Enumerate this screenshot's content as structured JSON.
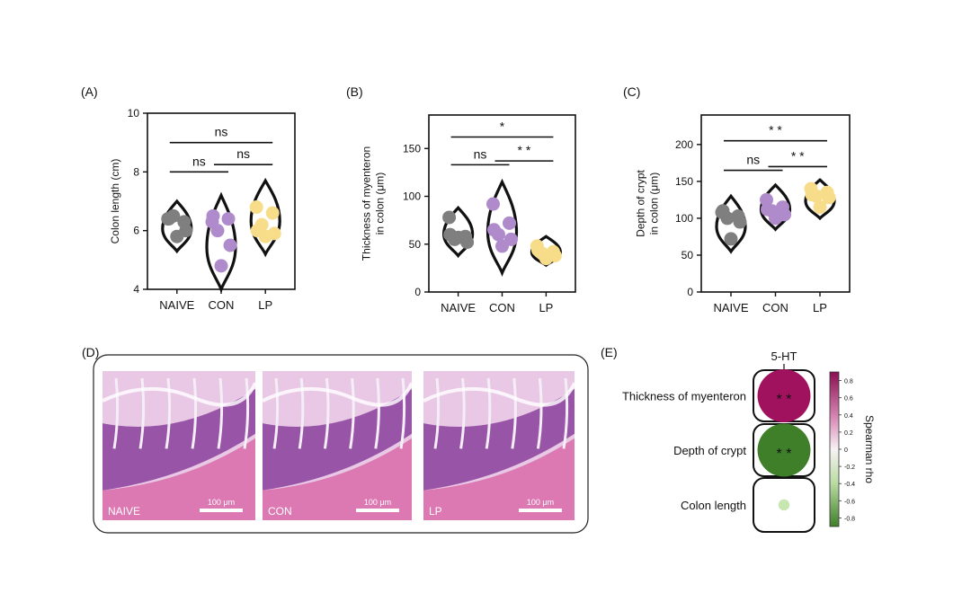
{
  "colors": {
    "naive": "#7f7f7f",
    "con": "#b08bcc",
    "lp": "#f7dc8a",
    "outline": "#111111",
    "tissue_bg": "#e9c8e6",
    "tissue_dark": "#8a3f9a",
    "tissue_pink": "#d96aa8",
    "rho_pos": "#a0125e",
    "rho_neg": "#3f7f2a",
    "rho_weak_neg": "#c8e6b0"
  },
  "chart_data": [
    {
      "type": "violin",
      "panel": "(A)",
      "ylabel": "Colon length (cm)",
      "ylim": [
        4,
        10
      ],
      "yticks": [
        4,
        6,
        8,
        10
      ],
      "categories": [
        "NAIVE",
        "CON",
        "LP"
      ],
      "groups": [
        {
          "name": "NAIVE",
          "min": 5.3,
          "max": 7.0,
          "points": [
            6.4,
            6.3,
            6.5,
            6.0,
            5.8,
            6.4
          ]
        },
        {
          "name": "CON",
          "min": 4.0,
          "max": 7.2,
          "points": [
            6.3,
            6.4,
            6.0,
            5.5,
            4.8,
            6.5
          ]
        },
        {
          "name": "LP",
          "min": 5.2,
          "max": 7.7,
          "points": [
            6.8,
            6.6,
            6.2,
            5.9,
            5.8,
            6.0
          ]
        }
      ],
      "significance": [
        {
          "from": 0,
          "to": 2,
          "label": "ns",
          "y": 9.0
        },
        {
          "from": 0,
          "to": 1,
          "label": "ns",
          "y": 8.0
        },
        {
          "from": 1,
          "to": 2,
          "label": "ns",
          "y": 8.25
        }
      ]
    },
    {
      "type": "violin",
      "panel": "(B)",
      "ylabel": [
        "Thickness of myenteron",
        "in colon (μm)"
      ],
      "ylim": [
        0,
        185
      ],
      "yticks": [
        0,
        50,
        100,
        150
      ],
      "categories": [
        "NAIVE",
        "CON",
        "LP"
      ],
      "groups": [
        {
          "name": "NAIVE",
          "min": 38,
          "max": 88,
          "points": [
            78,
            58,
            55,
            52,
            57,
            60
          ]
        },
        {
          "name": "CON",
          "min": 20,
          "max": 115,
          "points": [
            92,
            72,
            60,
            55,
            48,
            65
          ]
        },
        {
          "name": "LP",
          "min": 28,
          "max": 58,
          "points": [
            48,
            42,
            40,
            38,
            35,
            44
          ]
        }
      ],
      "significance": [
        {
          "from": 0,
          "to": 2,
          "label": "*",
          "y": 162
        },
        {
          "from": 0,
          "to": 1,
          "label": "ns",
          "y": 133
        },
        {
          "from": 1,
          "to": 2,
          "label": "* *",
          "y": 137
        }
      ]
    },
    {
      "type": "violin",
      "panel": "(C)",
      "ylabel": [
        "Depth of crypt",
        "in colon (μm)"
      ],
      "ylim": [
        0,
        240
      ],
      "yticks": [
        0,
        50,
        100,
        150,
        200
      ],
      "categories": [
        "NAIVE",
        "CON",
        "LP"
      ],
      "groups": [
        {
          "name": "NAIVE",
          "min": 55,
          "max": 130,
          "points": [
            108,
            103,
            100,
            95,
            72,
            110
          ]
        },
        {
          "name": "CON",
          "min": 85,
          "max": 145,
          "points": [
            125,
            115,
            110,
            105,
            100,
            112
          ]
        },
        {
          "name": "LP",
          "min": 100,
          "max": 152,
          "points": [
            140,
            135,
            130,
            128,
            115,
            132
          ]
        }
      ],
      "significance": [
        {
          "from": 0,
          "to": 2,
          "label": "* *",
          "y": 205
        },
        {
          "from": 0,
          "to": 1,
          "label": "ns",
          "y": 165
        },
        {
          "from": 1,
          "to": 2,
          "label": "* *",
          "y": 170
        }
      ]
    },
    {
      "type": "heatmap",
      "panel": "(E)",
      "column": "5-HT",
      "rows": [
        {
          "label": "Thickness of myenteron",
          "rho": 0.95,
          "stars": "* *"
        },
        {
          "label": "Depth of crypt",
          "rho": -0.95,
          "stars": "* *"
        },
        {
          "label": "Colon length",
          "rho": -0.2,
          "stars": ""
        }
      ],
      "colorbar": {
        "label": "Spearman rho",
        "range": [
          -0.9,
          0.9
        ],
        "ticks": [
          0.8,
          0.6,
          0.4,
          0.2,
          0,
          -0.2,
          -0.4,
          -0.6,
          -0.8
        ]
      }
    }
  ],
  "panel_d": {
    "label": "(D)",
    "images": [
      {
        "group": "NAIVE",
        "scalebar": "100 μm"
      },
      {
        "group": "CON",
        "scalebar": "100 μm"
      },
      {
        "group": "LP",
        "scalebar": "100 μm"
      }
    ]
  }
}
